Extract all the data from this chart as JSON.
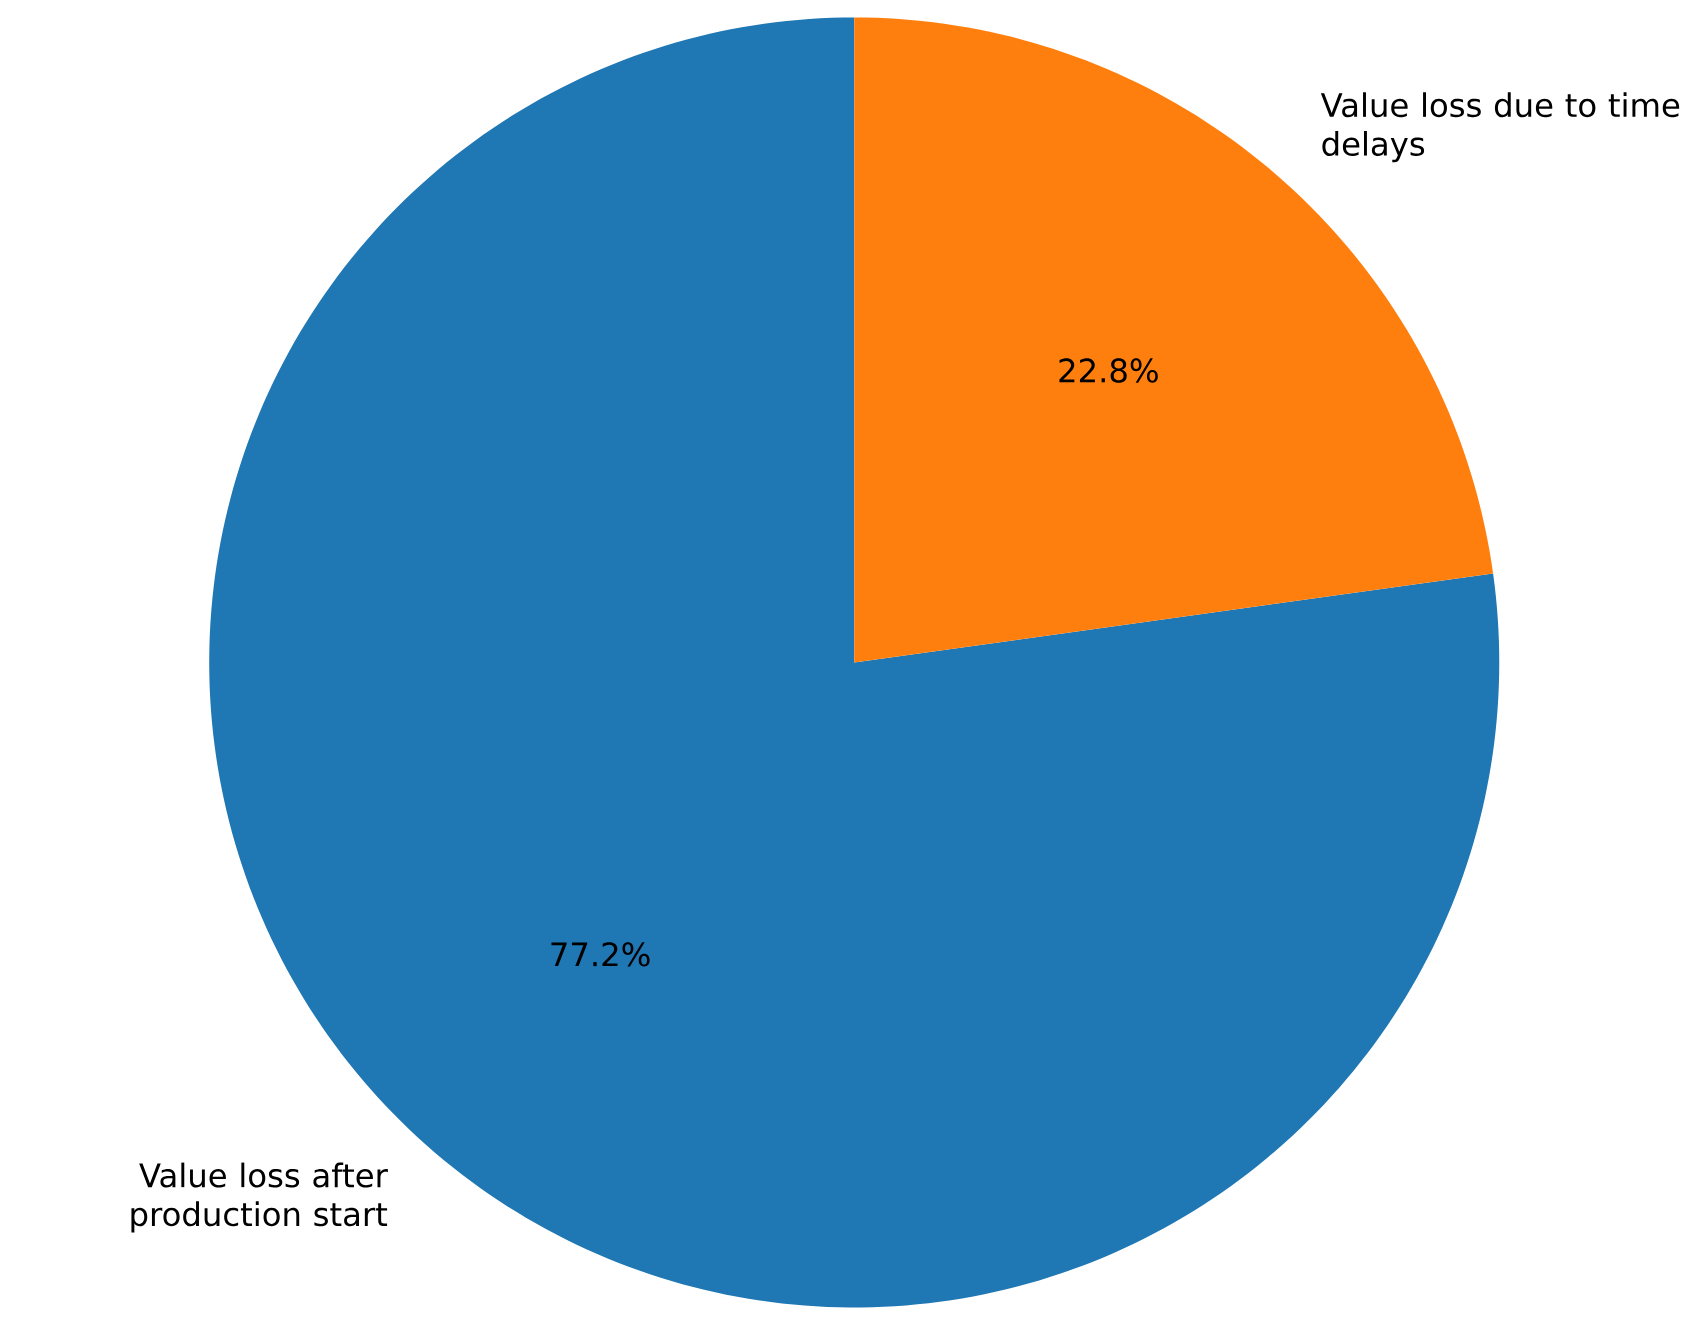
{
  "chart_data": {
    "type": "pie",
    "categories": [
      "Value loss after production start",
      "Value loss due to time delays"
    ],
    "values": [
      77.2,
      22.8
    ],
    "colors": [
      "#1f77b4",
      "#ff7f0e"
    ],
    "value_labels": [
      "77.2%",
      "22.8%"
    ]
  }
}
